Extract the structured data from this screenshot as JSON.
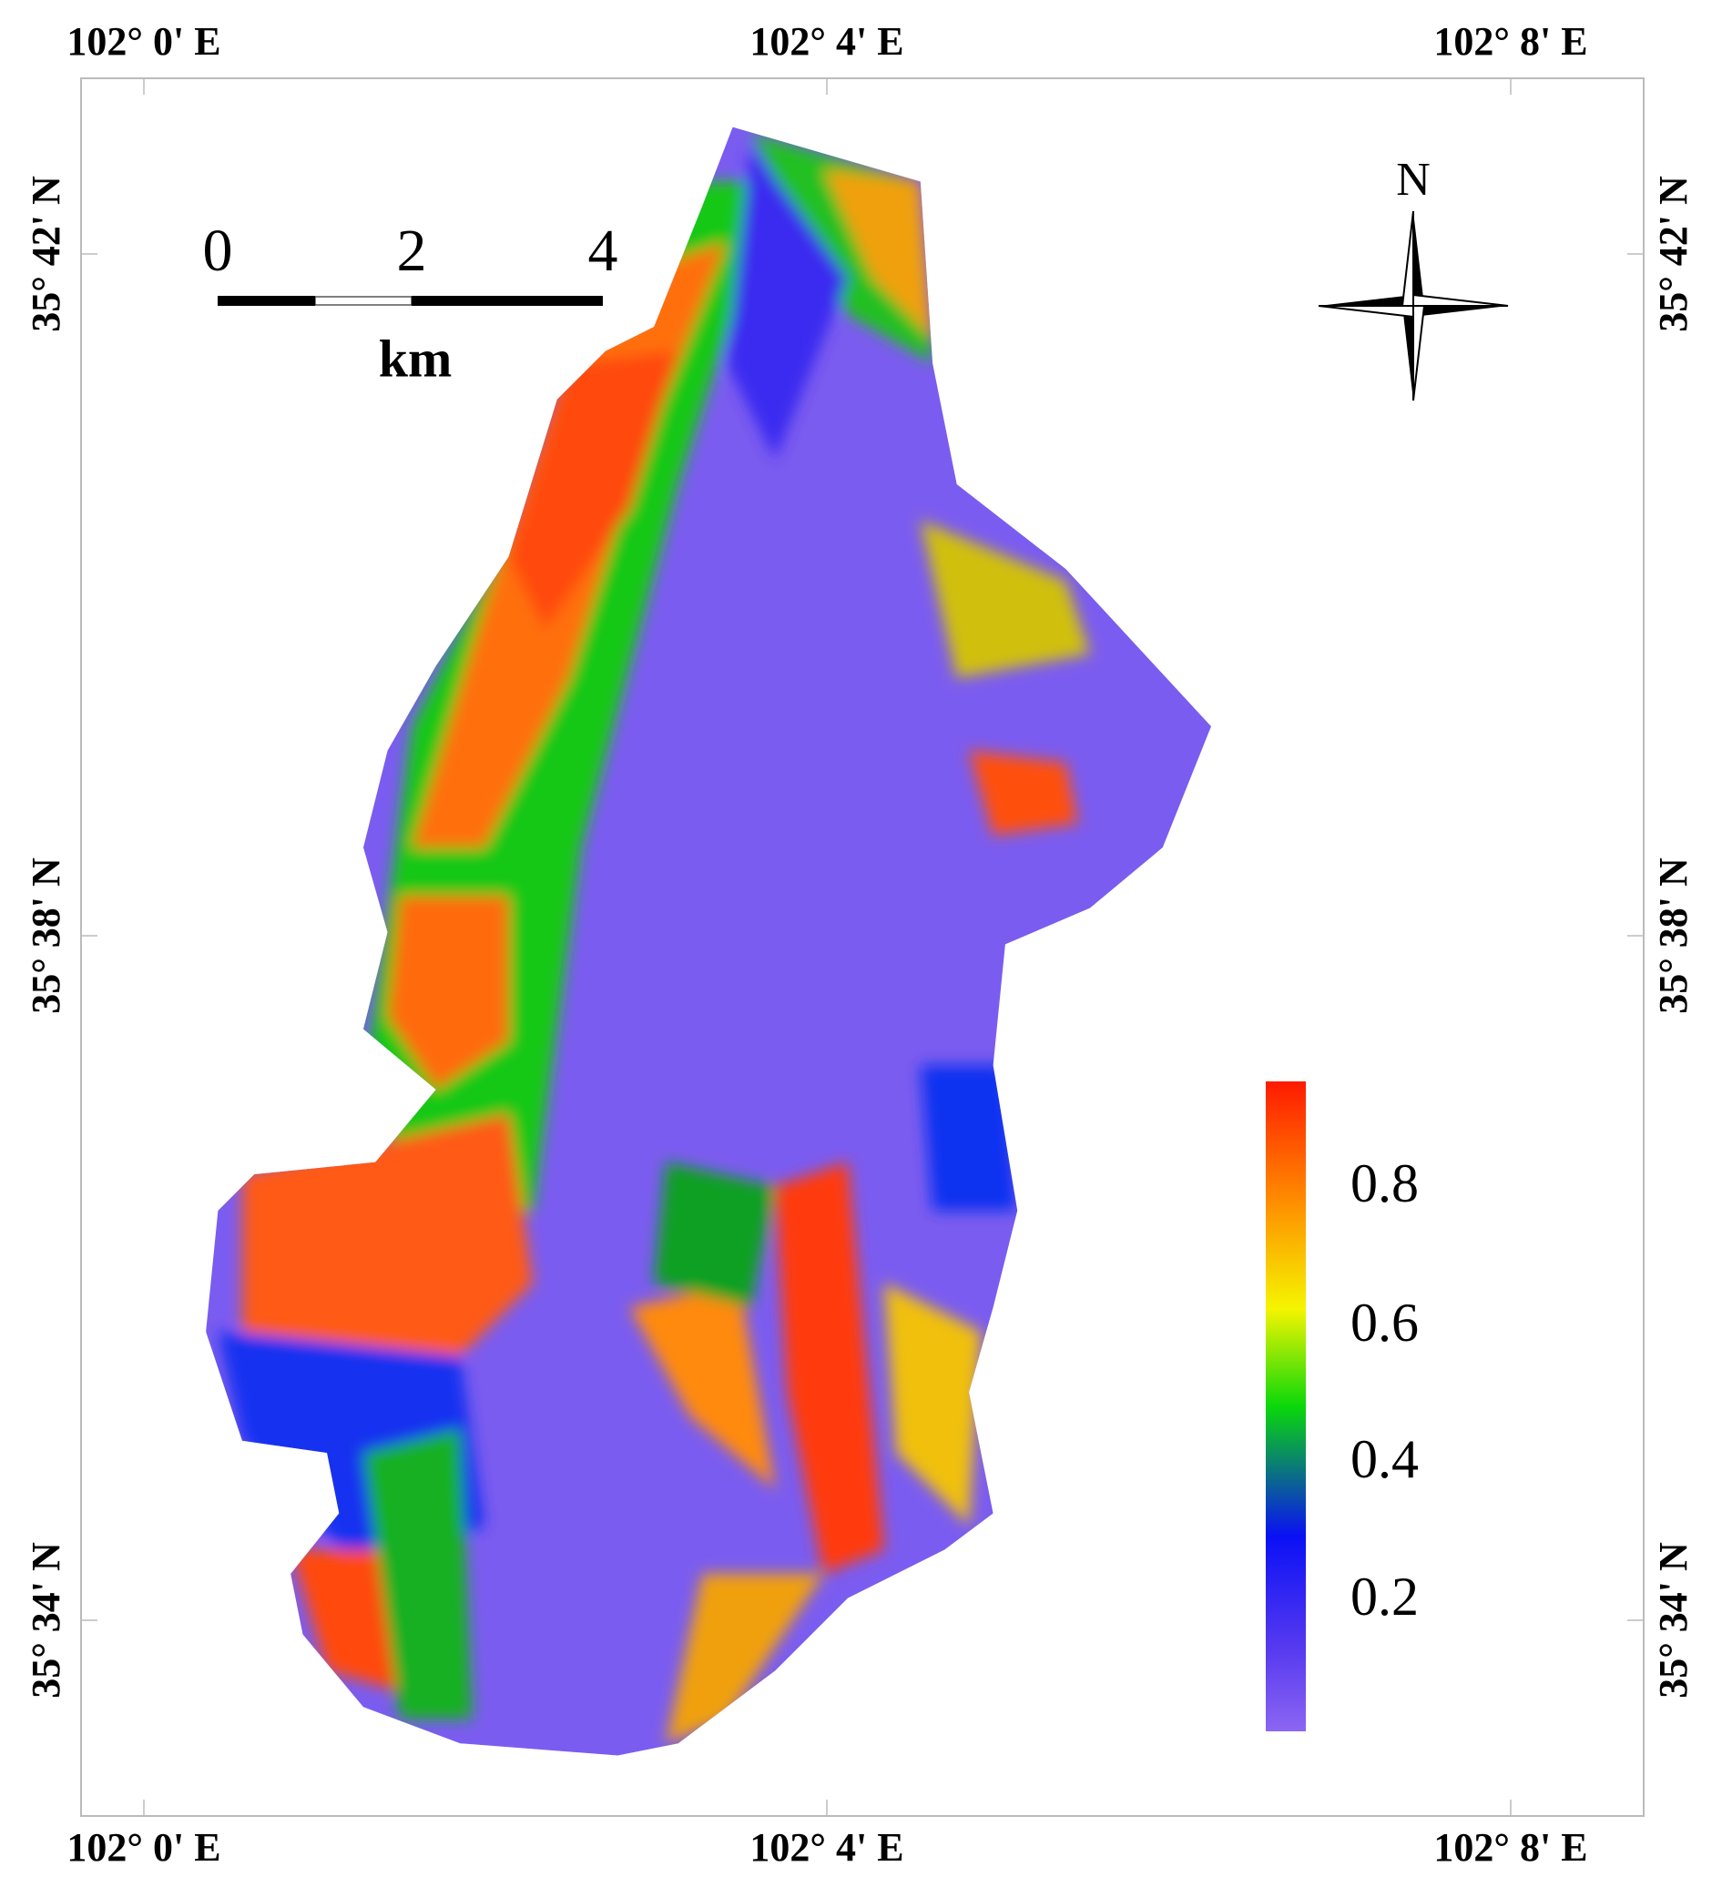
{
  "map": {
    "lon_labels": [
      "102° 0' E",
      "102° 4' E",
      "102° 8' E"
    ],
    "lat_labels": [
      "35° 42' N",
      "35° 38' N",
      "35° 34' N"
    ],
    "scale_bar": {
      "labels": [
        "0",
        "2",
        "4"
      ],
      "unit": "km"
    },
    "north_arrow": "N",
    "legend": {
      "ticks": [
        0.8,
        0.6,
        0.4,
        0.2
      ]
    }
  }
}
